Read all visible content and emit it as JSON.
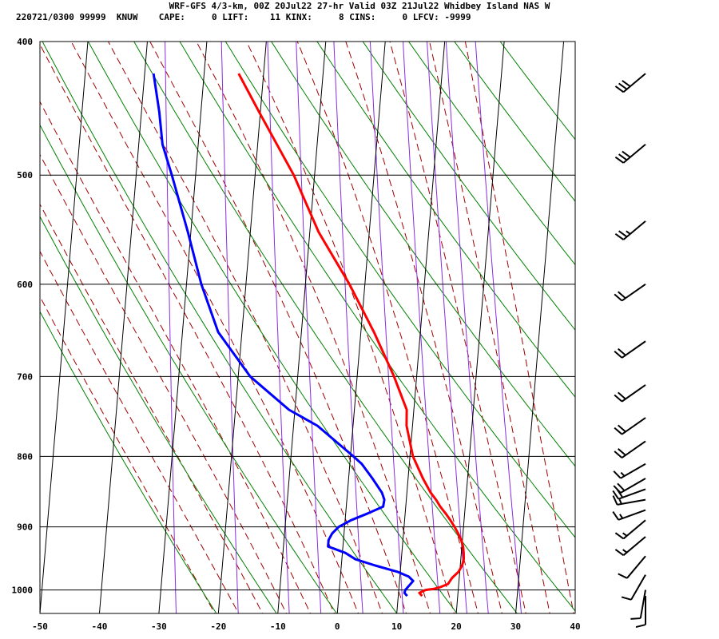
{
  "header": {
    "line1": "WRF-GFS 4/3-km, 00Z 20Jul22 27-hr Valid 03Z 21Jul22 Whidbey Island NAS W",
    "line2": "220721/0300 99999  KNUW    CAPE:     0 LIFT:    11 KINX:     8 CINS:     0 LFCV: -9999"
  },
  "chart_data": {
    "type": "line",
    "subtype": "skew-t log-p sounding",
    "xlim": [
      -50,
      40
    ],
    "ylim": [
      1040,
      400
    ],
    "y_scale": "log",
    "y_inverted": true,
    "x_ticks": [
      -50,
      -40,
      -30,
      -20,
      -10,
      0,
      10,
      20,
      30,
      40
    ],
    "y_ticks": [
      400,
      500,
      600,
      700,
      800,
      900,
      1000
    ],
    "grid": true,
    "colors": {
      "temperature": "#ff0000",
      "dewpoint": "#0000ff",
      "isotherm": "#000000",
      "isobar": "#000000",
      "dry_adiabat": "#008000",
      "moist_adiabat": "#a00000",
      "mixing_ratio": "#8a2be2",
      "wind_barb": "#000000"
    },
    "series": [
      {
        "points": [
          [
            1010,
            14.0
          ],
          [
            1005,
            13.5
          ],
          [
            1000,
            14.5
          ],
          [
            998,
            16.0
          ],
          [
            995,
            17.0
          ],
          [
            990,
            18.2
          ],
          [
            980,
            18.8
          ],
          [
            970,
            19.8
          ],
          [
            960,
            20.3
          ],
          [
            950,
            20.5
          ],
          [
            940,
            20.4
          ],
          [
            930,
            20.2
          ],
          [
            920,
            19.8
          ],
          [
            910,
            19.2
          ],
          [
            900,
            18.5
          ],
          [
            890,
            17.7
          ],
          [
            880,
            16.8
          ],
          [
            870,
            15.8
          ],
          [
            860,
            15.0
          ],
          [
            850,
            14.0
          ],
          [
            830,
            12.5
          ],
          [
            800,
            10.5
          ],
          [
            760,
            9.0
          ],
          [
            740,
            8.8
          ],
          [
            700,
            6.2
          ],
          [
            650,
            2.2
          ],
          [
            600,
            -2.6
          ],
          [
            550,
            -8.5
          ],
          [
            500,
            -13.5
          ],
          [
            450,
            -20.2
          ],
          [
            422,
            -24.2
          ]
        ]
      },
      {
        "points": [
          [
            1010,
            11.5
          ],
          [
            1005,
            11.0
          ],
          [
            1000,
            11.1
          ],
          [
            995,
            11.5
          ],
          [
            985,
            12.3
          ],
          [
            978,
            11.5
          ],
          [
            970,
            9.5
          ],
          [
            960,
            5.7
          ],
          [
            950,
            2.3
          ],
          [
            940,
            0.5
          ],
          [
            930,
            -2.5
          ],
          [
            920,
            -2.5
          ],
          [
            910,
            -2.0
          ],
          [
            900,
            -1.0
          ],
          [
            890,
            1.0
          ],
          [
            880,
            3.7
          ],
          [
            870,
            6.2
          ],
          [
            860,
            6.3
          ],
          [
            850,
            5.8
          ],
          [
            830,
            4.0
          ],
          [
            810,
            2.0
          ],
          [
            800,
            0.5
          ],
          [
            760,
            -6.0
          ],
          [
            740,
            -11.0
          ],
          [
            700,
            -18.0
          ],
          [
            650,
            -24.0
          ],
          [
            600,
            -27.5
          ],
          [
            550,
            -30.5
          ],
          [
            500,
            -34.0
          ],
          [
            475,
            -36.0
          ],
          [
            450,
            -37.0
          ],
          [
            422,
            -38.5
          ]
        ]
      }
    ],
    "wind_barbs": [
      {
        "p": 422,
        "dir": 230,
        "spd_kt": 30
      },
      {
        "p": 475,
        "dir": 230,
        "spd_kt": 30
      },
      {
        "p": 540,
        "dir": 230,
        "spd_kt": 25
      },
      {
        "p": 600,
        "dir": 235,
        "spd_kt": 20
      },
      {
        "p": 660,
        "dir": 235,
        "spd_kt": 20
      },
      {
        "p": 710,
        "dir": 235,
        "spd_kt": 20
      },
      {
        "p": 750,
        "dir": 235,
        "spd_kt": 20
      },
      {
        "p": 780,
        "dir": 235,
        "spd_kt": 20
      },
      {
        "p": 810,
        "dir": 240,
        "spd_kt": 15
      },
      {
        "p": 830,
        "dir": 240,
        "spd_kt": 20
      },
      {
        "p": 845,
        "dir": 250,
        "spd_kt": 20
      },
      {
        "p": 860,
        "dir": 260,
        "spd_kt": 15
      },
      {
        "p": 875,
        "dir": 250,
        "spd_kt": 15
      },
      {
        "p": 890,
        "dir": 230,
        "spd_kt": 15
      },
      {
        "p": 915,
        "dir": 230,
        "spd_kt": 15
      },
      {
        "p": 945,
        "dir": 220,
        "spd_kt": 10
      },
      {
        "p": 975,
        "dir": 210,
        "spd_kt": 10
      },
      {
        "p": 1000,
        "dir": 190,
        "spd_kt": 10
      },
      {
        "p": 1010,
        "dir": 180,
        "spd_kt": 10
      }
    ]
  }
}
